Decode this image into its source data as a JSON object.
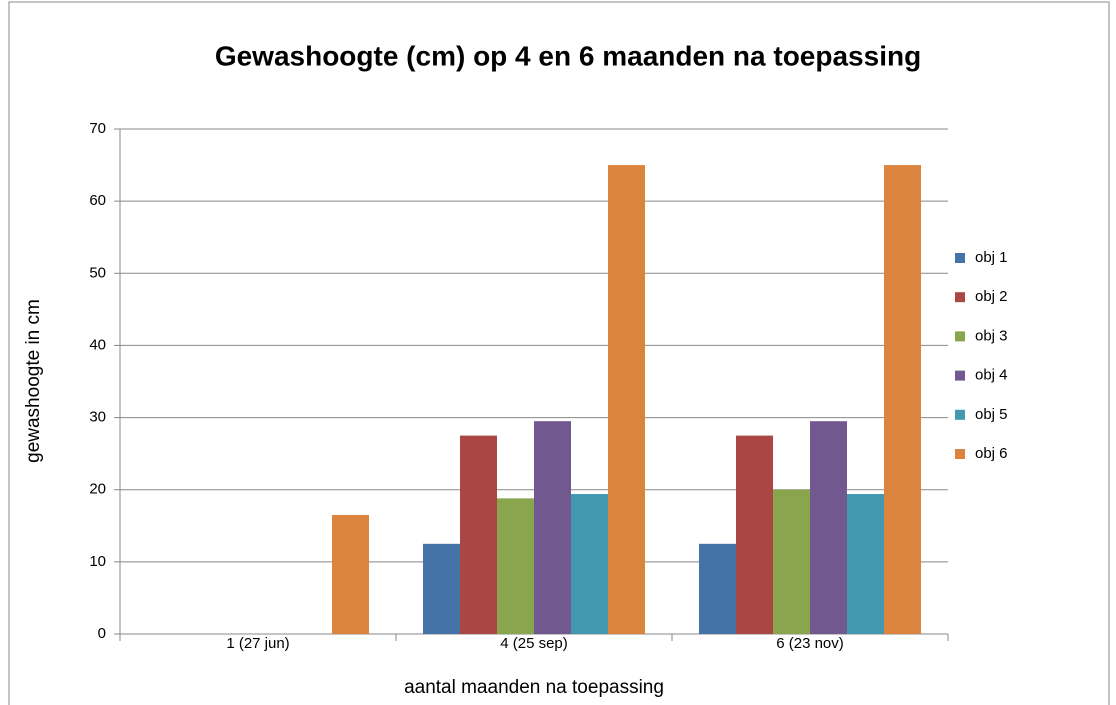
{
  "chart_data": {
    "type": "bar",
    "title": "Gewashoogte (cm) op 4 en 6 maanden na toepassing",
    "xlabel": "aantal maanden na toepassing",
    "ylabel": "gewashoogte in cm",
    "categories": [
      "1 (27 jun)",
      "4 (25 sep)",
      "6 (23 nov)"
    ],
    "series": [
      {
        "name": "obj 1",
        "color": "#4572a7",
        "values": [
          0,
          12.5,
          12.5
        ]
      },
      {
        "name": "obj 2",
        "color": "#aa4643",
        "values": [
          0,
          27.5,
          27.5
        ]
      },
      {
        "name": "obj 3",
        "color": "#89a54e",
        "values": [
          0,
          18.8,
          20
        ]
      },
      {
        "name": "obj 4",
        "color": "#71588f",
        "values": [
          0,
          29.5,
          29.5
        ]
      },
      {
        "name": "obj 5",
        "color": "#4198af",
        "values": [
          0,
          19.4,
          19.4
        ]
      },
      {
        "name": "obj 6",
        "color": "#db843d",
        "values": [
          16.5,
          65,
          65
        ]
      }
    ],
    "ylim": [
      0,
      70
    ],
    "yticks": [
      0,
      10,
      20,
      30,
      40,
      50,
      60,
      70
    ],
    "grid": true,
    "legend": "right"
  }
}
